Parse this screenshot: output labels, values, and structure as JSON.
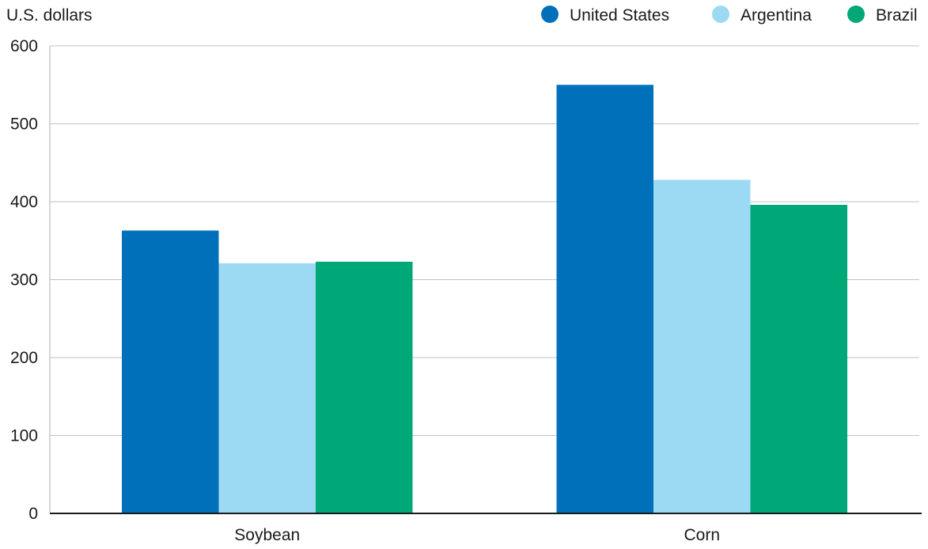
{
  "chart_data": {
    "type": "bar",
    "ylabel": "U.S. dollars",
    "categories": [
      "Soybean",
      "Corn"
    ],
    "series": [
      {
        "name": "United States",
        "color": "#0070ba",
        "values": [
          363,
          550
        ]
      },
      {
        "name": "Argentina",
        "color": "#9cdaf3",
        "values": [
          321,
          428
        ]
      },
      {
        "name": "Brazil",
        "color": "#00a878",
        "values": [
          323,
          396
        ]
      }
    ],
    "ylim": [
      0,
      600
    ],
    "yticks": [
      0,
      100,
      200,
      300,
      400,
      500,
      600
    ],
    "grid": true,
    "legend_position": "top-right"
  }
}
